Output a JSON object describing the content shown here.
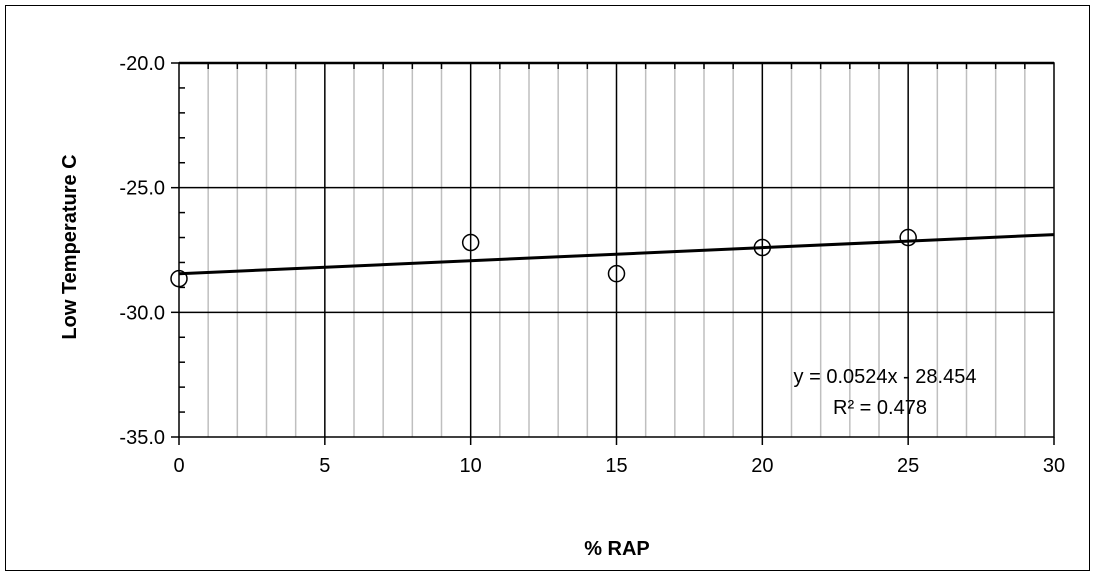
{
  "chart_data": {
    "type": "scatter",
    "xlabel": "% RAP",
    "ylabel": "Low Temperature C",
    "xlim": [
      0,
      30
    ],
    "ylim": [
      -35,
      -20
    ],
    "x_ticks": [
      "0",
      "5",
      "10",
      "15",
      "20",
      "25",
      "30"
    ],
    "y_ticks": [
      "-20.0",
      "-25.0",
      "-30.0",
      "-35.0"
    ],
    "grid": true,
    "series": [
      {
        "marker": "open-circle",
        "x": [
          0,
          10,
          15,
          20,
          25
        ],
        "y": [
          -28.65,
          -27.2,
          -28.45,
          -27.4,
          -27.0
        ]
      }
    ],
    "trendline": {
      "type": "linear",
      "slope": 0.0524,
      "intercept": -28.454,
      "equation": "y = 0.0524x - 28.454",
      "r_squared": "R² = 0.478"
    }
  }
}
